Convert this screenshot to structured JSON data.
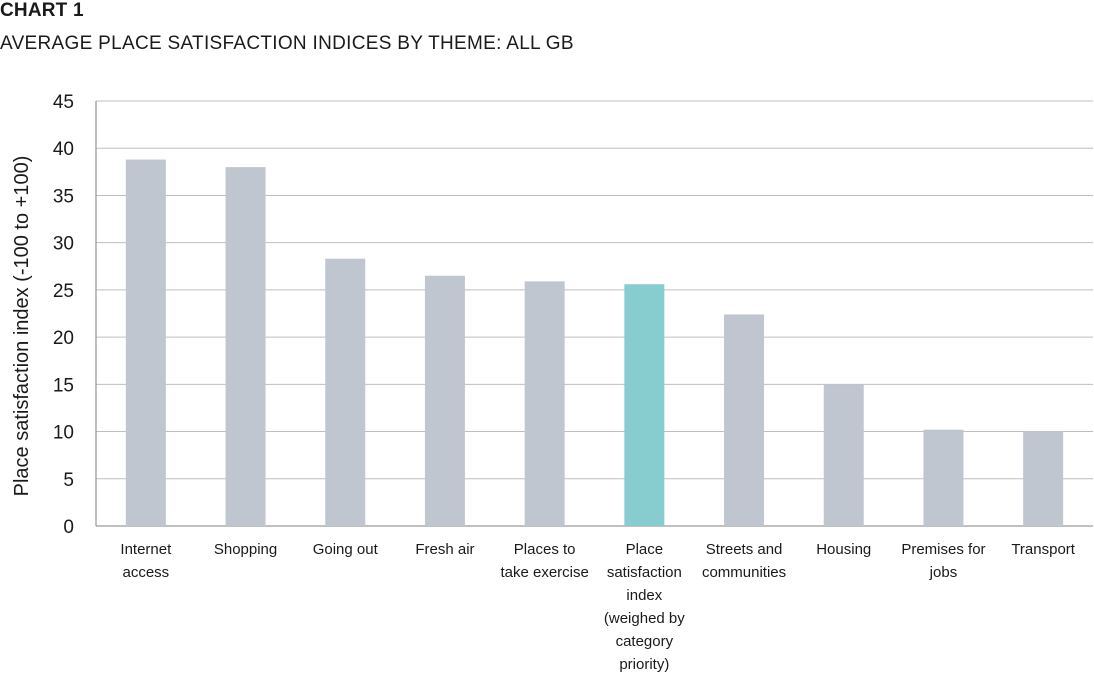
{
  "header": {
    "label": "CHART 1",
    "title": "AVERAGE PLACE SATISFACTION INDICES BY THEME: ALL GB"
  },
  "chart_data": {
    "type": "bar",
    "title": "AVERAGE PLACE SATISFACTION INDICES BY THEME: ALL GB",
    "ylabel": "Place satisfaction index (-100 to +100)",
    "xlabel": "",
    "ylim": [
      0,
      45
    ],
    "yticks": [
      0,
      5,
      10,
      15,
      20,
      25,
      30,
      35,
      40,
      45
    ],
    "grid": true,
    "categories": [
      [
        "Internet",
        "access"
      ],
      [
        "Shopping"
      ],
      [
        "Going out"
      ],
      [
        "Fresh air"
      ],
      [
        "Places to",
        "take exercise"
      ],
      [
        "Place",
        "satisfaction",
        "index",
        "(weighed by",
        "category",
        "priority)"
      ],
      [
        "Streets and",
        "communities"
      ],
      [
        "Housing"
      ],
      [
        "Premises for",
        "jobs"
      ],
      [
        "Transport"
      ]
    ],
    "values": [
      38.8,
      38.0,
      28.3,
      26.5,
      25.9,
      25.6,
      22.4,
      15.0,
      10.2,
      10.0
    ],
    "highlight_index": 5,
    "colors": {
      "bar": "#c0c6cf",
      "highlight": "#87cdd0",
      "grid": "#bfbfbf",
      "axis": "#808080"
    }
  }
}
